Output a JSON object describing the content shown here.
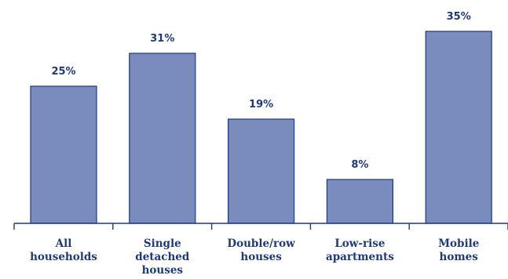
{
  "chart_data": {
    "type": "bar",
    "categories": [
      [
        "All",
        "households"
      ],
      [
        "Single",
        "detached",
        "houses"
      ],
      [
        "Double/row",
        "houses"
      ],
      [
        "Low-rise",
        "apartments"
      ],
      [
        "Mobile",
        "homes"
      ]
    ],
    "values": [
      25,
      31,
      19,
      8,
      35
    ],
    "value_labels": [
      "25%",
      "31%",
      "19%",
      "8%",
      "35%"
    ],
    "ylim": [
      0,
      40
    ],
    "grid": false,
    "colors": {
      "bar_fill": "#7a8bbd",
      "bar_stroke": "#1f3a7a",
      "axis": "#1f3a7a",
      "text": "#1f3a7a"
    }
  }
}
